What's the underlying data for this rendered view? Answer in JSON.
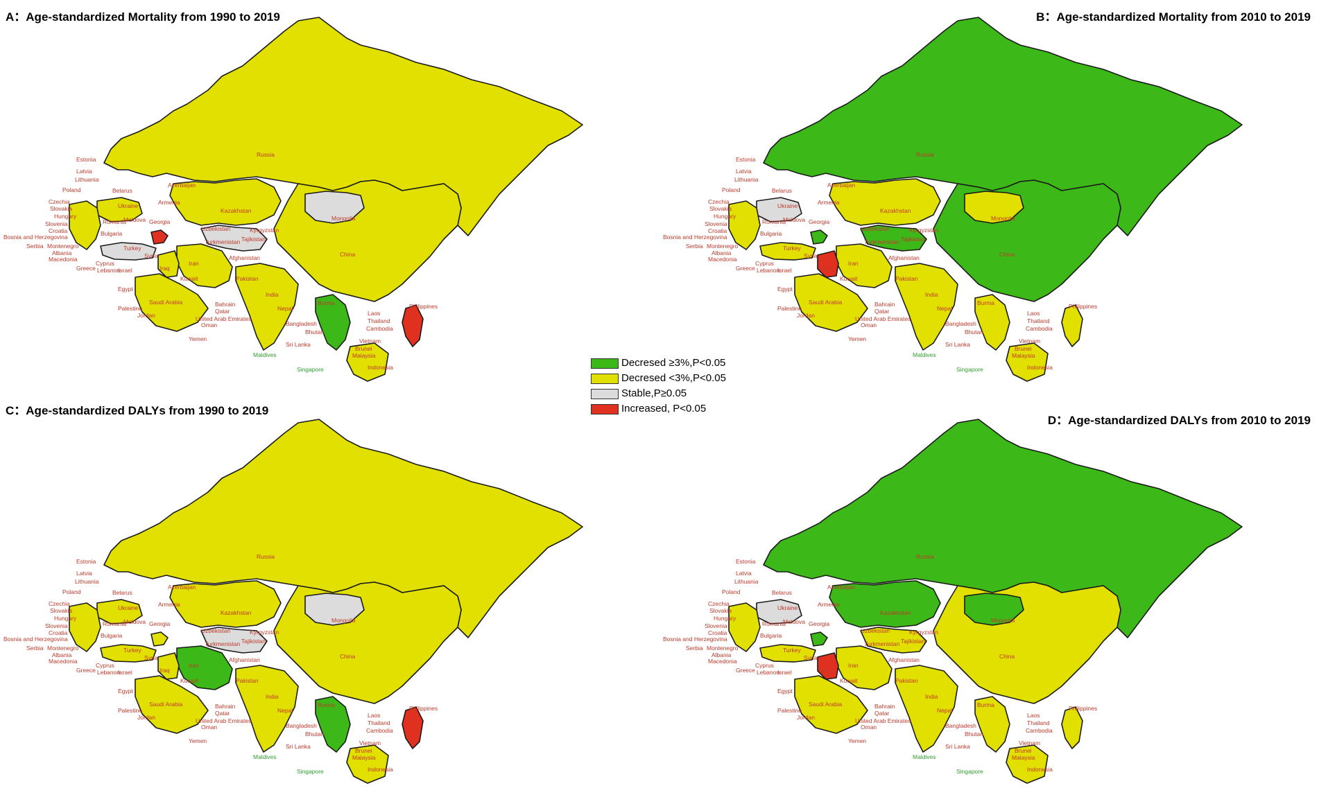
{
  "colors": {
    "dec_strong": "#3cb818",
    "dec_weak": "#e2e000",
    "stable": "#dcdcdc",
    "increased": "#e03020",
    "border": "#1a1a1a",
    "label_red": "#c0392b",
    "label_green": "#2e9e2e"
  },
  "panels": [
    {
      "id": "A",
      "title": "A：Age-standardized Mortality from 1990 to 2019"
    },
    {
      "id": "B",
      "title": "B：Age-standardized Mortality  from 2010 to 2019"
    },
    {
      "id": "C",
      "title": "C：Age-standardized DALYs  from 1990 to 2019"
    },
    {
      "id": "D",
      "title": "D：Age-standardized DALYs  from 2010 to 2019"
    }
  ],
  "legend": [
    {
      "key": "dec_strong",
      "text": "Decresed ≥3%,P<0.05"
    },
    {
      "key": "dec_weak",
      "text": "Decresed <3%,P<0.05"
    },
    {
      "key": "stable",
      "text": "Stable,P≥0.05"
    },
    {
      "key": "increased",
      "text": "Increased, P<0.05"
    }
  ],
  "country_labels": [
    "Estonia",
    "Latvia",
    "Lithuania",
    "Poland",
    "Czechia",
    "Slovakia",
    "Hungary",
    "Slovenia",
    "Croatia",
    "Bosnia and Herzegovina",
    "Serbia",
    "Montenegro",
    "Albania",
    "Macedonia",
    "Greece",
    "Cyprus",
    "Lebanon",
    "Israel",
    "Palestine",
    "Jordan",
    "Egypt",
    "Saudi Arabia",
    "Yemen",
    "Bahrain",
    "Qatar",
    "United Arab Emirates",
    "Oman",
    "Maldives",
    "Sri Lanka",
    "Singapore",
    "Bangladesh",
    "Bhutan",
    "Laos",
    "Thailand",
    "Cambodia",
    "Vietnam",
    "Brunei",
    "Malaysia",
    "Indonesia",
    "Philippines",
    "Russia",
    "Belarus",
    "Ukraine",
    "Moldova",
    "Romania",
    "Bulgaria",
    "Turkey",
    "Georgia",
    "Armenia",
    "Azerbaijan",
    "Kazakhstan",
    "Mongolia",
    "China",
    "Uzbekistan",
    "Turkmenistan",
    "Kyrgyzstan",
    "Tajikistan",
    "Afghanistan",
    "Iran",
    "Iraq",
    "Syria",
    "Kuwait",
    "Pakistan",
    "India",
    "Nepal",
    "Burma"
  ],
  "map_states": {
    "A": {
      "russia": "dec_weak",
      "china": "dec_weak",
      "mongolia": "stable",
      "kazakhstan": "dec_weak",
      "iran": "dec_weak",
      "india": "dec_weak",
      "saudi": "dec_weak",
      "turkey": "stable",
      "ukraine": "dec_weak",
      "indochina": "dec_strong",
      "borneo": "dec_weak",
      "philippines": "increased",
      "caucasus": "increased",
      "centralasia": "stable",
      "balkans": "dec_weak",
      "iraq": "dec_weak"
    },
    "B": {
      "russia": "dec_strong",
      "china": "dec_strong",
      "mongolia": "dec_weak",
      "kazakhstan": "dec_weak",
      "iran": "dec_weak",
      "india": "dec_weak",
      "saudi": "dec_weak",
      "turkey": "dec_weak",
      "ukraine": "stable",
      "indochina": "dec_weak",
      "borneo": "dec_weak",
      "philippines": "dec_weak",
      "caucasus": "dec_strong",
      "centralasia": "dec_strong",
      "balkans": "dec_weak",
      "iraq": "increased"
    },
    "C": {
      "russia": "dec_weak",
      "china": "dec_weak",
      "mongolia": "stable",
      "kazakhstan": "dec_weak",
      "iran": "dec_strong",
      "india": "dec_weak",
      "saudi": "dec_weak",
      "turkey": "dec_weak",
      "ukraine": "dec_weak",
      "indochina": "dec_strong",
      "borneo": "dec_weak",
      "philippines": "increased",
      "caucasus": "dec_weak",
      "centralasia": "stable",
      "balkans": "dec_weak",
      "iraq": "dec_weak"
    },
    "D": {
      "russia": "dec_strong",
      "china": "dec_weak",
      "mongolia": "dec_strong",
      "kazakhstan": "dec_strong",
      "iran": "dec_weak",
      "india": "dec_weak",
      "saudi": "dec_weak",
      "turkey": "dec_weak",
      "ukraine": "stable",
      "indochina": "dec_weak",
      "borneo": "dec_weak",
      "philippines": "dec_weak",
      "caucasus": "dec_strong",
      "centralasia": "dec_weak",
      "balkans": "dec_weak",
      "iraq": "increased"
    }
  }
}
